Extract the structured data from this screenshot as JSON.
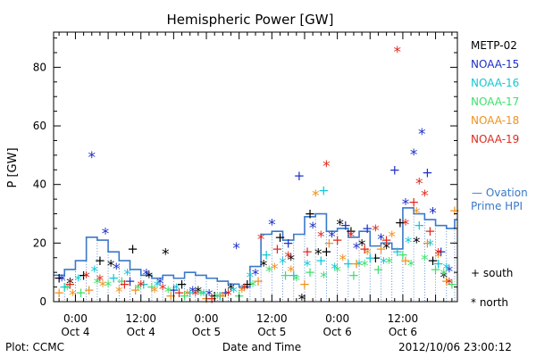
{
  "chart_data": {
    "type": "scatter",
    "title": "Hemispheric Power [GW]",
    "xlabel": "Date and Time",
    "ylabel": "P [GW]",
    "xlim": [
      -8,
      140
    ],
    "ylim": [
      0,
      92
    ],
    "y_ticks": [
      0,
      20,
      40,
      60,
      80
    ],
    "x_ticks": [
      {
        "x": 0,
        "line1": "0:00",
        "line2": "Oct 4"
      },
      {
        "x": 24,
        "line1": "12:00",
        "line2": "Oct 4"
      },
      {
        "x": 48,
        "line1": "0:00",
        "line2": "Oct 5"
      },
      {
        "x": 72,
        "line1": "12:00",
        "line2": "Oct 5"
      },
      {
        "x": 96,
        "line1": "0:00",
        "line2": "Oct 6"
      },
      {
        "x": 120,
        "line1": "12:00",
        "line2": "Oct 6"
      }
    ],
    "footer_left": "Plot: CCMC",
    "footer_right": "2012/10/06 23:00:12",
    "legend_position": "right",
    "marker_legend": {
      "south": "+ south",
      "north": "* north"
    },
    "ovation": {
      "name": "Ovation Prime HPI",
      "label_line1": "— Ovation",
      "label_line2": "Prime HPI",
      "color": "#3a78c8",
      "x": [
        -8,
        -4,
        0,
        4,
        8,
        12,
        16,
        20,
        24,
        28,
        32,
        36,
        40,
        44,
        48,
        52,
        56,
        60,
        64,
        68,
        72,
        76,
        80,
        84,
        88,
        92,
        96,
        100,
        104,
        108,
        112,
        116,
        120,
        124,
        128,
        132,
        136,
        139
      ],
      "y": [
        9,
        11,
        14,
        22,
        21,
        17,
        14,
        11,
        9,
        8,
        9,
        8,
        10,
        9,
        8,
        7,
        6,
        5,
        12,
        23,
        24,
        21,
        23,
        29,
        30,
        24,
        25,
        22,
        24,
        19,
        20,
        18,
        32,
        30,
        28,
        26,
        25,
        28
      ]
    },
    "series": [
      {
        "name": "METP-02",
        "color": "#000000",
        "points": [
          {
            "x": -6,
            "y": 8,
            "m": "+"
          },
          {
            "x": -2,
            "y": 6,
            "m": "*"
          },
          {
            "x": 3,
            "y": 9,
            "m": "+"
          },
          {
            "x": 9,
            "y": 14,
            "m": "+"
          },
          {
            "x": 13,
            "y": 12,
            "m": "*"
          },
          {
            "x": 21,
            "y": 18,
            "m": "+"
          },
          {
            "x": 27,
            "y": 8,
            "m": "*"
          },
          {
            "x": 33,
            "y": 16,
            "m": "*"
          },
          {
            "x": 39,
            "y": 6,
            "m": "+"
          },
          {
            "x": 45,
            "y": 3,
            "m": "*"
          },
          {
            "x": 51,
            "y": 2,
            "m": "+"
          },
          {
            "x": 57,
            "y": 4,
            "m": "*"
          },
          {
            "x": 63,
            "y": 6,
            "m": "+"
          },
          {
            "x": 69,
            "y": 12,
            "m": "*"
          },
          {
            "x": 75,
            "y": 22,
            "m": "+"
          },
          {
            "x": 79,
            "y": 14,
            "m": "*"
          },
          {
            "x": 83,
            "y": 0.5,
            "m": "*"
          },
          {
            "x": 86,
            "y": 30,
            "m": "+"
          },
          {
            "x": 89,
            "y": 16,
            "m": "*"
          },
          {
            "x": 92,
            "y": 17,
            "m": "+"
          },
          {
            "x": 97,
            "y": 26,
            "m": "*"
          },
          {
            "x": 101,
            "y": 24,
            "m": "+"
          },
          {
            "x": 105,
            "y": 19,
            "m": "*"
          },
          {
            "x": 110,
            "y": 15,
            "m": "+"
          },
          {
            "x": 114,
            "y": 18,
            "m": "*"
          },
          {
            "x": 119,
            "y": 27,
            "m": "+"
          },
          {
            "x": 125,
            "y": 20,
            "m": "*"
          },
          {
            "x": 131,
            "y": 14,
            "m": "+"
          },
          {
            "x": 135,
            "y": 8,
            "m": "*"
          }
        ]
      },
      {
        "name": "NOAA-15",
        "color": "#1c2fc8",
        "points": [
          {
            "x": -5,
            "y": 7,
            "m": "*"
          },
          {
            "x": 6,
            "y": 49,
            "m": "*"
          },
          {
            "x": 11,
            "y": 23,
            "m": "*"
          },
          {
            "x": 15,
            "y": 11,
            "m": "*"
          },
          {
            "x": 20,
            "y": 7,
            "m": "+"
          },
          {
            "x": 26,
            "y": 9,
            "m": "*"
          },
          {
            "x": 31,
            "y": 6,
            "m": "*"
          },
          {
            "x": 36,
            "y": 4,
            "m": "+"
          },
          {
            "x": 43,
            "y": 3,
            "m": "*"
          },
          {
            "x": 49,
            "y": 2,
            "m": "*"
          },
          {
            "x": 55,
            "y": 3,
            "m": "+"
          },
          {
            "x": 59,
            "y": 18,
            "m": "*"
          },
          {
            "x": 66,
            "y": 9,
            "m": "*"
          },
          {
            "x": 72,
            "y": 26,
            "m": "*"
          },
          {
            "x": 78,
            "y": 20,
            "m": "+"
          },
          {
            "x": 82,
            "y": 43,
            "m": "+"
          },
          {
            "x": 87,
            "y": 25,
            "m": "*"
          },
          {
            "x": 94,
            "y": 22,
            "m": "*"
          },
          {
            "x": 99,
            "y": 26,
            "m": "+"
          },
          {
            "x": 103,
            "y": 18,
            "m": "*"
          },
          {
            "x": 107,
            "y": 25,
            "m": "+"
          },
          {
            "x": 112,
            "y": 21,
            "m": "*"
          },
          {
            "x": 117,
            "y": 45,
            "m": "+"
          },
          {
            "x": 121,
            "y": 33,
            "m": "*"
          },
          {
            "x": 124,
            "y": 50,
            "m": "*"
          },
          {
            "x": 127,
            "y": 57,
            "m": "*"
          },
          {
            "x": 129,
            "y": 44,
            "m": "+"
          },
          {
            "x": 131,
            "y": 30,
            "m": "*"
          },
          {
            "x": 134,
            "y": 17,
            "m": "+"
          },
          {
            "x": 137,
            "y": 10,
            "m": "*"
          }
        ]
      },
      {
        "name": "NOAA-16",
        "color": "#12c8d6",
        "points": [
          {
            "x": -4,
            "y": 5,
            "m": "+"
          },
          {
            "x": 1,
            "y": 7,
            "m": "*"
          },
          {
            "x": 7,
            "y": 10,
            "m": "*"
          },
          {
            "x": 14,
            "y": 8,
            "m": "+"
          },
          {
            "x": 19,
            "y": 9,
            "m": "*"
          },
          {
            "x": 25,
            "y": 6,
            "m": "+"
          },
          {
            "x": 30,
            "y": 5,
            "m": "*"
          },
          {
            "x": 37,
            "y": 4,
            "m": "*"
          },
          {
            "x": 42,
            "y": 3,
            "m": "+"
          },
          {
            "x": 47,
            "y": 2,
            "m": "*"
          },
          {
            "x": 53,
            "y": 2,
            "m": "+"
          },
          {
            "x": 58,
            "y": 3,
            "m": "*"
          },
          {
            "x": 64,
            "y": 8,
            "m": "*"
          },
          {
            "x": 70,
            "y": 16,
            "m": "+"
          },
          {
            "x": 76,
            "y": 13,
            "m": "*"
          },
          {
            "x": 80,
            "y": 9,
            "m": "+"
          },
          {
            "x": 85,
            "y": 12,
            "m": "*"
          },
          {
            "x": 90,
            "y": 14,
            "m": "+"
          },
          {
            "x": 95,
            "y": 11,
            "m": "*"
          },
          {
            "x": 100,
            "y": 13,
            "m": "+"
          },
          {
            "x": 104,
            "y": 12,
            "m": "*"
          },
          {
            "x": 108,
            "y": 15,
            "m": "+"
          },
          {
            "x": 113,
            "y": 13,
            "m": "*"
          },
          {
            "x": 118,
            "y": 17,
            "m": "+"
          },
          {
            "x": 122,
            "y": 20,
            "m": "*"
          },
          {
            "x": 126,
            "y": 26,
            "m": "+"
          },
          {
            "x": 130,
            "y": 19,
            "m": "*"
          },
          {
            "x": 133,
            "y": 13,
            "m": "+"
          },
          {
            "x": 136,
            "y": 11,
            "m": "*"
          },
          {
            "x": 91,
            "y": 38,
            "m": "+"
          }
        ]
      },
      {
        "name": "NOAA-17",
        "color": "#3ee06e",
        "points": [
          {
            "x": -3,
            "y": 4,
            "m": "*"
          },
          {
            "x": 2,
            "y": 3,
            "m": "+"
          },
          {
            "x": 8,
            "y": 6,
            "m": "*"
          },
          {
            "x": 12,
            "y": 5,
            "m": "*"
          },
          {
            "x": 17,
            "y": 7,
            "m": "+"
          },
          {
            "x": 23,
            "y": 4,
            "m": "*"
          },
          {
            "x": 28,
            "y": 5,
            "m": "+"
          },
          {
            "x": 34,
            "y": 3,
            "m": "*"
          },
          {
            "x": 40,
            "y": 2,
            "m": "+"
          },
          {
            "x": 46,
            "y": 2,
            "m": "*"
          },
          {
            "x": 52,
            "y": 1,
            "m": "*"
          },
          {
            "x": 60,
            "y": 2,
            "m": "+"
          },
          {
            "x": 65,
            "y": 5,
            "m": "*"
          },
          {
            "x": 71,
            "y": 10,
            "m": "*"
          },
          {
            "x": 77,
            "y": 9,
            "m": "+"
          },
          {
            "x": 81,
            "y": 7,
            "m": "*"
          },
          {
            "x": 86,
            "y": 10,
            "m": "+"
          },
          {
            "x": 91,
            "y": 8,
            "m": "*"
          },
          {
            "x": 96,
            "y": 10,
            "m": "*"
          },
          {
            "x": 102,
            "y": 9,
            "m": "+"
          },
          {
            "x": 106,
            "y": 12,
            "m": "*"
          },
          {
            "x": 111,
            "y": 11,
            "m": "+"
          },
          {
            "x": 115,
            "y": 13,
            "m": "*"
          },
          {
            "x": 120,
            "y": 16,
            "m": "+"
          },
          {
            "x": 123,
            "y": 12,
            "m": "*"
          },
          {
            "x": 128,
            "y": 14,
            "m": "*"
          },
          {
            "x": 132,
            "y": 11,
            "m": "+"
          },
          {
            "x": 135,
            "y": 9,
            "m": "*"
          },
          {
            "x": 138,
            "y": 6,
            "m": "+"
          }
        ]
      },
      {
        "name": "NOAA-18",
        "color": "#f0921e",
        "points": [
          {
            "x": -6,
            "y": 3,
            "m": "+"
          },
          {
            "x": -1,
            "y": 2,
            "m": "*"
          },
          {
            "x": 5,
            "y": 4,
            "m": "+"
          },
          {
            "x": 10,
            "y": 5,
            "m": "*"
          },
          {
            "x": 16,
            "y": 3,
            "m": "*"
          },
          {
            "x": 22,
            "y": 4,
            "m": "+"
          },
          {
            "x": 29,
            "y": 3,
            "m": "*"
          },
          {
            "x": 35,
            "y": 2,
            "m": "+"
          },
          {
            "x": 41,
            "y": 2,
            "m": "*"
          },
          {
            "x": 48,
            "y": 1,
            "m": "+"
          },
          {
            "x": 54,
            "y": 1,
            "m": "*"
          },
          {
            "x": 61,
            "y": 3,
            "m": "*"
          },
          {
            "x": 67,
            "y": 7,
            "m": "+"
          },
          {
            "x": 73,
            "y": 11,
            "m": "*"
          },
          {
            "x": 79,
            "y": 10,
            "m": "*"
          },
          {
            "x": 84,
            "y": 6,
            "m": "+"
          },
          {
            "x": 88,
            "y": 36,
            "m": "*"
          },
          {
            "x": 93,
            "y": 20,
            "m": "+"
          },
          {
            "x": 98,
            "y": 14,
            "m": "*"
          },
          {
            "x": 103,
            "y": 13,
            "m": "+"
          },
          {
            "x": 107,
            "y": 16,
            "m": "*"
          },
          {
            "x": 112,
            "y": 18,
            "m": "+"
          },
          {
            "x": 116,
            "y": 22,
            "m": "*"
          },
          {
            "x": 121,
            "y": 14,
            "m": "+"
          },
          {
            "x": 125,
            "y": 30,
            "m": "*"
          },
          {
            "x": 129,
            "y": 20,
            "m": "+"
          },
          {
            "x": 133,
            "y": 15,
            "m": "*"
          },
          {
            "x": 136,
            "y": 7,
            "m": "+"
          },
          {
            "x": 139,
            "y": 31,
            "m": "+"
          }
        ]
      },
      {
        "name": "NOAA-19",
        "color": "#e02a1e",
        "points": [
          {
            "x": -2,
            "y": 6,
            "m": "+"
          },
          {
            "x": 4,
            "y": 8,
            "m": "*"
          },
          {
            "x": 9,
            "y": 7,
            "m": "*"
          },
          {
            "x": 18,
            "y": 6,
            "m": "+"
          },
          {
            "x": 24,
            "y": 5,
            "m": "*"
          },
          {
            "x": 32,
            "y": 4,
            "m": "*"
          },
          {
            "x": 38,
            "y": 3,
            "m": "+"
          },
          {
            "x": 44,
            "y": 2,
            "m": "*"
          },
          {
            "x": 50,
            "y": 1,
            "m": "+"
          },
          {
            "x": 56,
            "y": 2,
            "m": "*"
          },
          {
            "x": 62,
            "y": 4,
            "m": "*"
          },
          {
            "x": 68,
            "y": 21,
            "m": "*"
          },
          {
            "x": 74,
            "y": 18,
            "m": "+"
          },
          {
            "x": 78,
            "y": 15,
            "m": "*"
          },
          {
            "x": 85,
            "y": 17,
            "m": "+"
          },
          {
            "x": 90,
            "y": 22,
            "m": "*"
          },
          {
            "x": 92,
            "y": 46,
            "m": "*"
          },
          {
            "x": 96,
            "y": 21,
            "m": "+"
          },
          {
            "x": 101,
            "y": 22,
            "m": "*"
          },
          {
            "x": 106,
            "y": 18,
            "m": "+"
          },
          {
            "x": 110,
            "y": 24,
            "m": "*"
          },
          {
            "x": 114,
            "y": 21,
            "m": "+"
          },
          {
            "x": 118,
            "y": 85,
            "m": "*"
          },
          {
            "x": 121,
            "y": 26,
            "m": "*"
          },
          {
            "x": 124,
            "y": 34,
            "m": "+"
          },
          {
            "x": 126,
            "y": 40,
            "m": "*"
          },
          {
            "x": 128,
            "y": 36,
            "m": "*"
          },
          {
            "x": 130,
            "y": 24,
            "m": "+"
          },
          {
            "x": 133,
            "y": 16,
            "m": "*"
          },
          {
            "x": 137,
            "y": 6,
            "m": "*"
          }
        ]
      }
    ]
  }
}
